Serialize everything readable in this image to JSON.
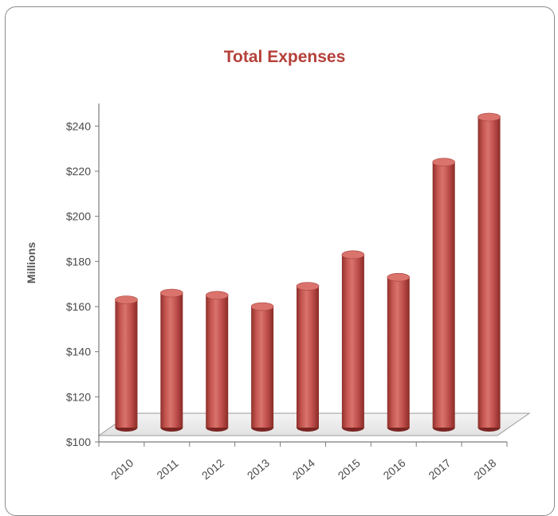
{
  "chart_data": {
    "type": "bar",
    "title": "Total Expenses",
    "ylabel": "Millions",
    "xlabel": "",
    "categories": [
      "2010",
      "2011",
      "2012",
      "2013",
      "2014",
      "2015",
      "2016",
      "2017",
      "2018"
    ],
    "values": [
      163,
      166,
      165,
      160,
      169,
      183,
      173,
      224,
      244
    ],
    "ylim": [
      100,
      250
    ],
    "yticks": [
      100,
      120,
      140,
      160,
      180,
      200,
      220,
      240
    ],
    "ytick_labels": [
      "$100",
      "$120",
      "$140",
      "$160",
      "$180",
      "$200",
      "$220",
      "$240"
    ],
    "bar_color": "#c0504d",
    "bar_style": "3d-cylinder",
    "grid": false,
    "legend": "none"
  }
}
